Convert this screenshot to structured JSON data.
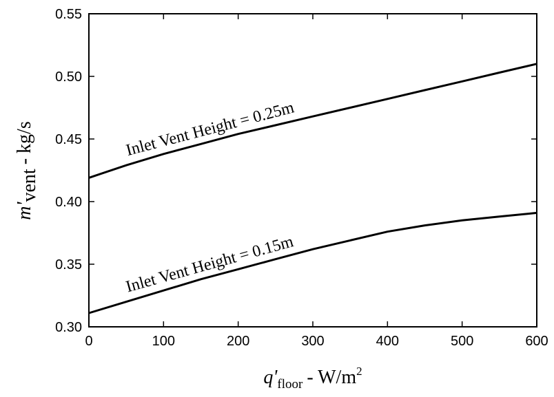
{
  "chart_data": {
    "type": "line",
    "title": "",
    "xlabel": {
      "base": "q'",
      "sub": "floor",
      "unit": "- W/m",
      "sup": "2"
    },
    "ylabel": {
      "base": "m'",
      "sub": "vent",
      "unit": "- kg/s"
    },
    "xlim": [
      0,
      600
    ],
    "ylim": [
      0.3,
      0.55
    ],
    "xticks": [
      0,
      100,
      200,
      300,
      400,
      500,
      600
    ],
    "xtick_labels": [
      "0",
      "100",
      "200",
      "300",
      "400",
      "500",
      "600"
    ],
    "yticks": [
      0.3,
      0.35,
      0.4,
      0.45,
      0.5,
      0.55
    ],
    "ytick_labels": [
      "0.30",
      "0.35",
      "0.40",
      "0.45",
      "0.50",
      "0.55"
    ],
    "grid": false,
    "x": [
      0,
      50,
      100,
      150,
      200,
      250,
      300,
      350,
      400,
      450,
      500,
      550,
      600
    ],
    "series": [
      {
        "label": "Inlet Vent Height = 0.25m",
        "values": [
          0.419,
          0.429,
          0.438,
          0.446,
          0.454,
          0.461,
          0.468,
          0.475,
          0.482,
          0.489,
          0.496,
          0.503,
          0.51
        ]
      },
      {
        "label": "Inlet Vent Height = 0.15m",
        "values": [
          0.311,
          0.32,
          0.329,
          0.338,
          0.346,
          0.354,
          0.362,
          0.369,
          0.376,
          0.381,
          0.385,
          0.388,
          0.391
        ]
      }
    ]
  }
}
